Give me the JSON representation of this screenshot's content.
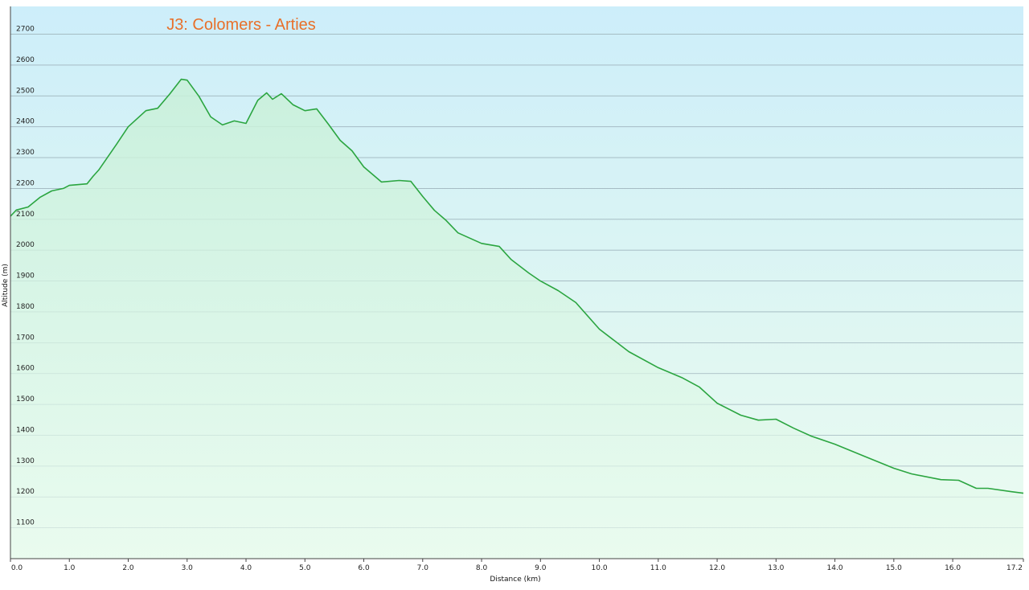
{
  "chart_data": {
    "type": "area",
    "title": "J3: Colomers - Arties",
    "x_label": "Distance  (km)",
    "y_label": "Altitude (m)",
    "color": "#2ba540",
    "grid": true,
    "xlim": [
      0,
      17.2
    ],
    "ylim": [
      1000,
      2790
    ],
    "xticks": [
      {
        "value": 0,
        "label": "0.0"
      },
      {
        "value": 1,
        "label": "1.0"
      },
      {
        "value": 2,
        "label": "2.0"
      },
      {
        "value": 3,
        "label": "3.0"
      },
      {
        "value": 4,
        "label": "4.0"
      },
      {
        "value": 5,
        "label": "5.0"
      },
      {
        "value": 6,
        "label": "6.0"
      },
      {
        "value": 7,
        "label": "7.0"
      },
      {
        "value": 8,
        "label": "8.0"
      },
      {
        "value": 9,
        "label": "9.0"
      },
      {
        "value": 10,
        "label": "10.0"
      },
      {
        "value": 11,
        "label": "11.0"
      },
      {
        "value": 12,
        "label": "12.0"
      },
      {
        "value": 13,
        "label": "13.0"
      },
      {
        "value": 14,
        "label": "14.0"
      },
      {
        "value": 15,
        "label": "15.0"
      },
      {
        "value": 16,
        "label": "16.0"
      },
      17.2
    ],
    "yticks": [
      1100,
      1200,
      1300,
      1400,
      1500,
      1600,
      1700,
      1800,
      1900,
      2000,
      2100,
      2200,
      2300,
      2400,
      2500,
      2600,
      2700
    ],
    "x": [
      0,
      0.1,
      0.3,
      0.5,
      0.7,
      0.9,
      1.0,
      1.3,
      1.4,
      1.5,
      1.8,
      2.0,
      2.3,
      2.5,
      2.7,
      2.9,
      3.0,
      3.2,
      3.4,
      3.6,
      3.8,
      4.0,
      4.2,
      4.35,
      4.45,
      4.6,
      4.8,
      5.0,
      5.2,
      5.4,
      5.6,
      5.8,
      6.0,
      6.3,
      6.6,
      6.8,
      7.0,
      7.2,
      7.4,
      7.6,
      8.0,
      8.3,
      8.5,
      8.8,
      9.0,
      9.3,
      9.6,
      10.0,
      10.5,
      11.0,
      11.4,
      11.7,
      12.0,
      12.4,
      12.7,
      13.0,
      13.3,
      13.6,
      14.0,
      14.5,
      15.0,
      15.3,
      15.8,
      16.1,
      16.4,
      16.6,
      17.0,
      17.2
    ],
    "values": [
      2110,
      2130,
      2140,
      2171,
      2192,
      2200,
      2210,
      2215,
      2239,
      2260,
      2343,
      2400,
      2452,
      2460,
      2505,
      2554,
      2551,
      2499,
      2432,
      2406,
      2419,
      2411,
      2486,
      2510,
      2489,
      2507,
      2471,
      2452,
      2458,
      2408,
      2356,
      2322,
      2270,
      2221,
      2226,
      2223,
      2174,
      2129,
      2096,
      2056,
      2022,
      2012,
      1970,
      1926,
      1900,
      1869,
      1830,
      1744,
      1671,
      1619,
      1587,
      1556,
      1504,
      1465,
      1449,
      1452,
      1423,
      1397,
      1371,
      1332,
      1293,
      1275,
      1256,
      1254,
      1228,
      1228,
      1217,
      1212
    ]
  }
}
